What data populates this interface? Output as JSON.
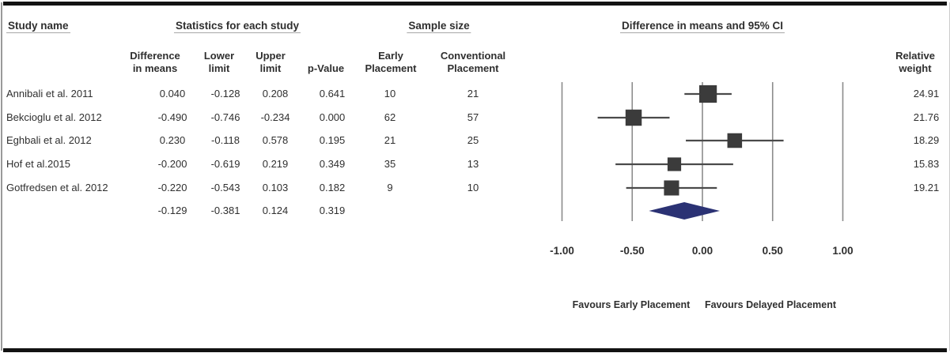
{
  "header": {
    "study_name": "Study name",
    "stats_group": "Statistics for each study",
    "sample_group": "Sample size",
    "plot_group": "Difference in means and 95% CI",
    "col_diff": [
      "Difference",
      "in means"
    ],
    "col_lower": [
      "Lower",
      "limit"
    ],
    "col_upper": [
      "Upper",
      "limit"
    ],
    "col_pvalue": "p-Value",
    "col_early": [
      "Early",
      "Placement"
    ],
    "col_conventional": [
      "Conventional",
      "Placement"
    ],
    "col_weight": [
      "Relative",
      "weight"
    ]
  },
  "chart_data": {
    "type": "forest",
    "title": "Difference in means and 95% CI",
    "x_tick_labels": [
      "-1.00",
      "-0.50",
      "0.00",
      "0.50",
      "1.00"
    ],
    "x_tick_values": [
      -1.0,
      -0.5,
      0.0,
      0.5,
      1.0
    ],
    "xlim": [
      -1.0,
      1.0
    ],
    "studies": [
      {
        "name": "Annibali et al. 2011",
        "mean": "0.040",
        "lower": "-0.128",
        "upper": "0.208",
        "p_value": "0.641",
        "early_n": "10",
        "conventional_n": "21",
        "relative_weight": "24.91"
      },
      {
        "name": "Bekcioglu et al. 2012",
        "mean": "-0.490",
        "lower": "-0.746",
        "upper": "-0.234",
        "p_value": "0.000",
        "early_n": "62",
        "conventional_n": "57",
        "relative_weight": "21.76"
      },
      {
        "name": "Eghbali et al. 2012",
        "mean": "0.230",
        "lower": "-0.118",
        "upper": "0.578",
        "p_value": "0.195",
        "early_n": "21",
        "conventional_n": "25",
        "relative_weight": "18.29"
      },
      {
        "name": "Hof et al.2015",
        "mean": "-0.200",
        "lower": "-0.619",
        "upper": "0.219",
        "p_value": "0.349",
        "early_n": "35",
        "conventional_n": "13",
        "relative_weight": "15.83"
      },
      {
        "name": "Gotfredsen et al. 2012",
        "mean": "-0.220",
        "lower": "-0.543",
        "upper": "0.103",
        "p_value": "0.182",
        "early_n": "9",
        "conventional_n": "10",
        "relative_weight": "19.21"
      }
    ],
    "overall": {
      "mean": "-0.129",
      "lower": "-0.381",
      "upper": "0.124",
      "p_value": "0.319"
    },
    "footer_left": "Favours Early Placement",
    "footer_right": "Favours Delayed Placement",
    "colors": {
      "square": "#3b3b3b",
      "ci_line": "#4a4a4a",
      "gridline": "#8c8c8c",
      "diamond": "#2b3274",
      "text": "#2f2f2f",
      "frame": "#121212"
    }
  }
}
